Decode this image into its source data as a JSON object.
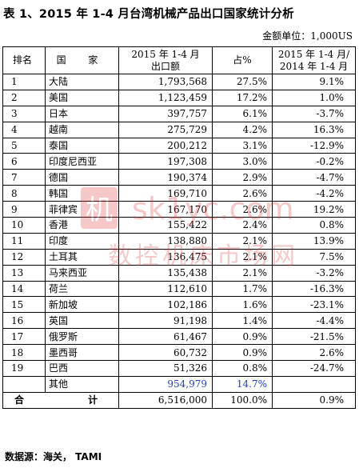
{
  "title": "表 1、2015 年 1-4 月台湾机械产品出口国家统计分析",
  "unit": "金额单位：1,000US",
  "headers": {
    "rank": "排名",
    "country": "国 家",
    "amount_line1": "2015 年 1-4 月",
    "amount_line2": "出口额",
    "share": "占%",
    "growth_line1": "2015 年 1-4 月/",
    "growth_line2": "2014 年 1-4 月"
  },
  "rows": [
    {
      "rank": "1",
      "country": "大陆",
      "amount": "1,793,568",
      "share": "27.5%",
      "growth": "9.1%"
    },
    {
      "rank": "2",
      "country": "美国",
      "amount": "1,123,459",
      "share": "17.2%",
      "growth": "1.0%"
    },
    {
      "rank": "3",
      "country": "日本",
      "amount": "397,757",
      "share": "6.1%",
      "growth": "-3.7%"
    },
    {
      "rank": "4",
      "country": "越南",
      "amount": "275,729",
      "share": "4.2%",
      "growth": "16.3%"
    },
    {
      "rank": "5",
      "country": "泰国",
      "amount": "200,212",
      "share": "3.1%",
      "growth": "-12.9%"
    },
    {
      "rank": "6",
      "country": "印度尼西亚",
      "amount": "197,308",
      "share": "3.0%",
      "growth": "-0.2%"
    },
    {
      "rank": "7",
      "country": "德国",
      "amount": "190,374",
      "share": "2.9%",
      "growth": "-4.7%"
    },
    {
      "rank": "8",
      "country": "韩国",
      "amount": "169,710",
      "share": "2.6%",
      "growth": "-4.2%"
    },
    {
      "rank": "9",
      "country": "菲律宾",
      "amount": "167,170",
      "share": "2.6%",
      "growth": "19.2%"
    },
    {
      "rank": "10",
      "country": "香港",
      "amount": "155,422",
      "share": "2.4%",
      "growth": "0.8%"
    },
    {
      "rank": "11",
      "country": "印度",
      "amount": "138,880",
      "share": "2.1%",
      "growth": "13.9%"
    },
    {
      "rank": "12",
      "country": "土耳其",
      "amount": "136,475",
      "share": "2.1%",
      "growth": "7.5%"
    },
    {
      "rank": "13",
      "country": "马来西亚",
      "amount": "135,438",
      "share": "2.1%",
      "growth": "-3.2%"
    },
    {
      "rank": "14",
      "country": "荷兰",
      "amount": "112,610",
      "share": "1.7%",
      "growth": "-16.3%"
    },
    {
      "rank": "15",
      "country": "新加坡",
      "amount": "102,186",
      "share": "1.6%",
      "growth": "-23.1%"
    },
    {
      "rank": "16",
      "country": "英国",
      "amount": "91,198",
      "share": "1.4%",
      "growth": "-4.4%"
    },
    {
      "rank": "17",
      "country": "俄罗斯",
      "amount": "61,467",
      "share": "0.9%",
      "growth": "-21.5%"
    },
    {
      "rank": "18",
      "country": "墨西哥",
      "amount": "60,732",
      "share": "0.9%",
      "growth": "2.6%"
    },
    {
      "rank": "19",
      "country": "巴西",
      "amount": "51,326",
      "share": "0.8%",
      "growth": "-24.7%"
    }
  ],
  "other": {
    "country": "其他",
    "amount": "954,979",
    "share": "14.7%",
    "highlight_color": "#1f3fbf"
  },
  "total": {
    "label": "合 计",
    "amount": "6,516,000",
    "share": "100.0%",
    "growth": "0.9%"
  },
  "source": "数据源：海关， TAMI",
  "watermark": {
    "line1": "sk1yc.com",
    "line2": "数控机床市场网",
    "logo_char": "机",
    "color": "#e03b3b"
  }
}
